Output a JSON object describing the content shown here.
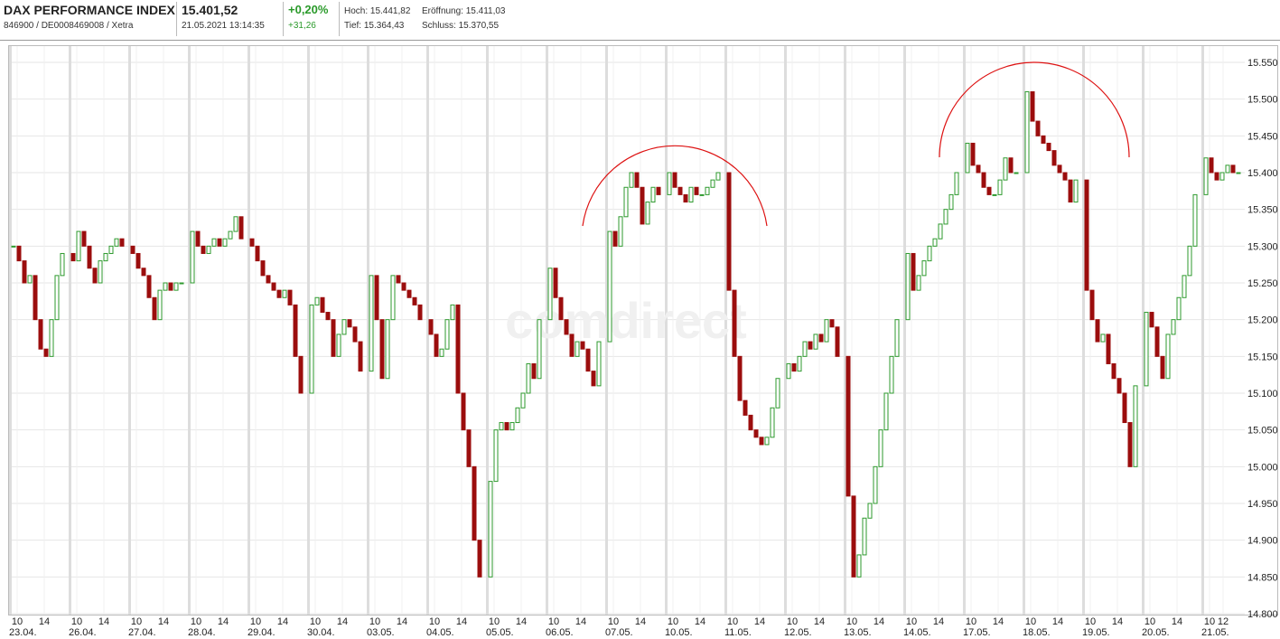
{
  "header": {
    "name": "DAX PERFORMANCE INDEX",
    "ids": "846900 / DE0008469008 / Xetra",
    "price": "15.401,52",
    "time": "21.05.2021 13:14:35",
    "change_pct": "+0,20%",
    "change_abs": "+31,26",
    "high": "Hoch: 15.441,82",
    "low": "Tief: 15.364,43",
    "open": "Eröffnung: 15.411,03",
    "close": "Schluss: 15.370,55"
  },
  "chart_data": {
    "type": "candlestick",
    "watermark": "comdirect",
    "up_color": "#2e9a2e",
    "down_color": "#9b0d0d",
    "ylim": [
      14800,
      15550
    ],
    "yticks": [
      {
        "value": 15550,
        "label": "15.550"
      },
      {
        "value": 15500,
        "label": "15.500"
      },
      {
        "value": 15450,
        "label": "15.450"
      },
      {
        "value": 15400,
        "label": "15.400"
      },
      {
        "value": 15350,
        "label": "15.350"
      },
      {
        "value": 15300,
        "label": "15.300"
      },
      {
        "value": 15250,
        "label": "15.250"
      },
      {
        "value": 15200,
        "label": "15.200"
      },
      {
        "value": 15150,
        "label": "15.150"
      },
      {
        "value": 15100,
        "label": "15.100"
      },
      {
        "value": 15050,
        "label": "15.050"
      },
      {
        "value": 15000,
        "label": "15.000"
      },
      {
        "value": 14950,
        "label": "14.950"
      },
      {
        "value": 14900,
        "label": "14.900"
      },
      {
        "value": 14850,
        "label": "14.850"
      },
      {
        "value": 14800,
        "label": "14.800"
      }
    ],
    "days": [
      {
        "date": "23.04.",
        "hours": [
          "10",
          "14"
        ],
        "values": [
          15300,
          15280,
          15250,
          15260,
          15200,
          15160,
          15150,
          15200,
          15260,
          15290
        ]
      },
      {
        "date": "26.04.",
        "hours": [
          "10",
          "14"
        ],
        "values": [
          15280,
          15320,
          15300,
          15270,
          15250,
          15280,
          15290,
          15300,
          15310,
          15300
        ]
      },
      {
        "date": "27.04.",
        "hours": [
          "10",
          "14"
        ],
        "values": [
          15290,
          15270,
          15260,
          15230,
          15200,
          15240,
          15250,
          15240,
          15250,
          15250
        ]
      },
      {
        "date": "28.04.",
        "hours": [
          "10",
          "14"
        ],
        "values": [
          15320,
          15300,
          15290,
          15300,
          15310,
          15300,
          15310,
          15320,
          15340,
          15310
        ]
      },
      {
        "date": "29.04.",
        "hours": [
          "10",
          "14"
        ],
        "values": [
          15300,
          15280,
          15260,
          15250,
          15240,
          15230,
          15240,
          15220,
          15150,
          15100
        ]
      },
      {
        "date": "30.04.",
        "hours": [
          "10",
          "14"
        ],
        "values": [
          15220,
          15230,
          15210,
          15200,
          15150,
          15180,
          15200,
          15190,
          15170,
          15130
        ]
      },
      {
        "date": "03.05.",
        "hours": [
          "10",
          "14"
        ],
        "values": [
          15260,
          15200,
          15120,
          15200,
          15260,
          15250,
          15240,
          15230,
          15220,
          15200
        ]
      },
      {
        "date": "04.05.",
        "hours": [
          "10",
          "14"
        ],
        "values": [
          15180,
          15150,
          15160,
          15200,
          15220,
          15100,
          15050,
          15000,
          14900,
          14850
        ]
      },
      {
        "date": "05.05.",
        "hours": [
          "10",
          "14"
        ],
        "values": [
          14980,
          15050,
          15060,
          15050,
          15060,
          15080,
          15100,
          15140,
          15120,
          15200
        ]
      },
      {
        "date": "06.05.",
        "hours": [
          "10",
          "14"
        ],
        "values": [
          15270,
          15230,
          15200,
          15180,
          15150,
          15170,
          15160,
          15130,
          15110,
          15170
        ]
      },
      {
        "date": "07.05.",
        "hours": [
          "10",
          "14"
        ],
        "values": [
          15320,
          15300,
          15340,
          15380,
          15400,
          15380,
          15330,
          15360,
          15380,
          15370
        ]
      },
      {
        "date": "10.05.",
        "hours": [
          "10",
          "14"
        ],
        "values": [
          15400,
          15380,
          15370,
          15360,
          15380,
          15370,
          15370,
          15380,
          15390,
          15400
        ]
      },
      {
        "date": "11.05.",
        "hours": [
          "10",
          "14"
        ],
        "values": [
          15240,
          15150,
          15090,
          15070,
          15050,
          15040,
          15030,
          15040,
          15080,
          15120
        ]
      },
      {
        "date": "12.05.",
        "hours": [
          "10",
          "14"
        ],
        "values": [
          15140,
          15130,
          15150,
          15170,
          15160,
          15180,
          15170,
          15200,
          15190,
          15150
        ]
      },
      {
        "date": "13.05.",
        "hours": [
          "10",
          "14"
        ],
        "values": [
          14960,
          14850,
          14880,
          14930,
          14950,
          15000,
          15050,
          15100,
          15150,
          15200
        ]
      },
      {
        "date": "14.05.",
        "hours": [
          "10",
          "14"
        ],
        "values": [
          15290,
          15240,
          15260,
          15280,
          15300,
          15310,
          15330,
          15350,
          15370,
          15400
        ]
      },
      {
        "date": "17.05.",
        "hours": [
          "10",
          "14"
        ],
        "values": [
          15440,
          15410,
          15400,
          15380,
          15370,
          15370,
          15390,
          15420,
          15400,
          15400
        ]
      },
      {
        "date": "18.05.",
        "hours": [
          "10",
          "14"
        ],
        "values": [
          15510,
          15470,
          15450,
          15440,
          15430,
          15410,
          15400,
          15390,
          15360,
          15390
        ]
      },
      {
        "date": "19.05.",
        "hours": [
          "10",
          "14"
        ],
        "values": [
          15240,
          15200,
          15170,
          15180,
          15140,
          15120,
          15100,
          15060,
          15000,
          15110
        ]
      },
      {
        "date": "20.05.",
        "hours": [
          "10",
          "14"
        ],
        "values": [
          15210,
          15190,
          15150,
          15120,
          15180,
          15200,
          15230,
          15260,
          15300,
          15370
        ]
      },
      {
        "date": "21.05.",
        "hours": [
          "10",
          "12"
        ],
        "values": [
          15420,
          15400,
          15390,
          15400,
          15410,
          15400,
          15400
        ]
      }
    ]
  }
}
